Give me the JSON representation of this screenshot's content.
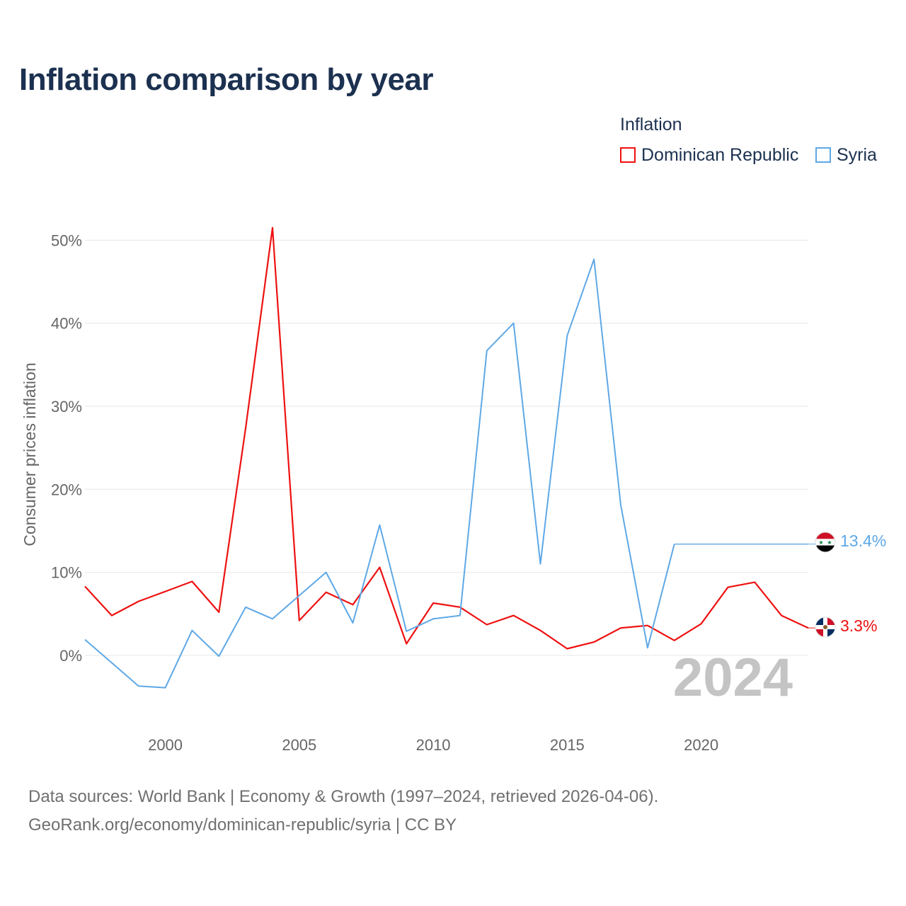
{
  "colors": {
    "dominican_republic": "#ee1111",
    "syria": "#5ea8e6",
    "title": "#1c3150",
    "grid": "#e6e6e6"
  },
  "chart_data": {
    "type": "line",
    "title": "Inflation comparison by year",
    "ylabel": "Consumer prices inflation",
    "xlabel": "",
    "legend_title": "Inflation",
    "legend_position": "top-right",
    "x": [
      1997,
      1998,
      1999,
      2000,
      2001,
      2002,
      2003,
      2004,
      2005,
      2006,
      2007,
      2008,
      2009,
      2010,
      2011,
      2012,
      2013,
      2014,
      2015,
      2016,
      2017,
      2018,
      2019,
      2020,
      2021,
      2022,
      2023,
      2024
    ],
    "x_ticks": [
      2000,
      2005,
      2010,
      2015,
      2020
    ],
    "y_ticks": [
      0,
      10,
      20,
      30,
      40,
      50
    ],
    "y_tick_labels": [
      "0%",
      "10%",
      "20%",
      "30%",
      "40%",
      "50%"
    ],
    "xlim": [
      1997,
      2024
    ],
    "ylim": [
      -7,
      52.5
    ],
    "grid": true,
    "series": [
      {
        "name": "Dominican Republic",
        "color": "#ee1111",
        "values": [
          8.3,
          4.8,
          6.5,
          7.7,
          8.9,
          5.2,
          27.4,
          51.5,
          4.2,
          7.6,
          6.1,
          10.6,
          1.4,
          6.3,
          5.8,
          3.7,
          4.8,
          3.0,
          0.8,
          1.6,
          3.3,
          3.6,
          1.8,
          3.8,
          8.2,
          8.8,
          4.8,
          3.3
        ],
        "end_label": "3.3%"
      },
      {
        "name": "Syria",
        "color": "#5ea8e6",
        "values": [
          1.9,
          -0.9,
          -3.7,
          -3.9,
          3.0,
          -0.1,
          5.8,
          4.4,
          7.2,
          10.0,
          3.9,
          15.7,
          2.9,
          4.4,
          4.8,
          36.7,
          40.0,
          11.0,
          38.5,
          47.7,
          18.1,
          0.9,
          13.4,
          null,
          null,
          null,
          null,
          null
        ],
        "hold_last_value": true,
        "end_label": "13.4%"
      }
    ],
    "year_watermark": "2024"
  },
  "legend": {
    "title": "Inflation",
    "items": [
      "Dominican Republic",
      "Syria"
    ]
  },
  "sources": {
    "line1": "Data sources: World Bank | Economy & Growth (1997–2024, retrieved 2026-04-06).",
    "line2": "GeoRank.org/economy/dominican-republic/syria | CC BY"
  }
}
